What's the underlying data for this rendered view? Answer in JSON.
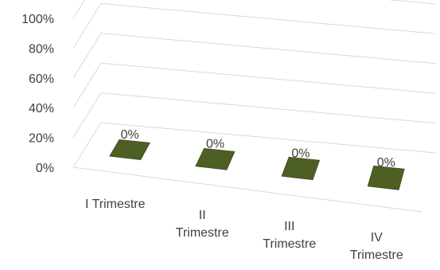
{
  "chart_data": {
    "type": "bar",
    "categories": [
      [
        "I Trimestre"
      ],
      [
        "II",
        "Trimestre"
      ],
      [
        "III",
        "Trimestre"
      ],
      [
        "IV",
        "Trimestre"
      ]
    ],
    "values": [
      0,
      0,
      0,
      0
    ],
    "data_labels": [
      "0%",
      "0%",
      "0%",
      "0%"
    ],
    "y_ticks": [
      "0%",
      "20%",
      "40%",
      "60%",
      "80%",
      "100%"
    ],
    "ylim": [
      0,
      1
    ],
    "bar_color": "#4e5f24",
    "grid": true,
    "legend": "none"
  }
}
